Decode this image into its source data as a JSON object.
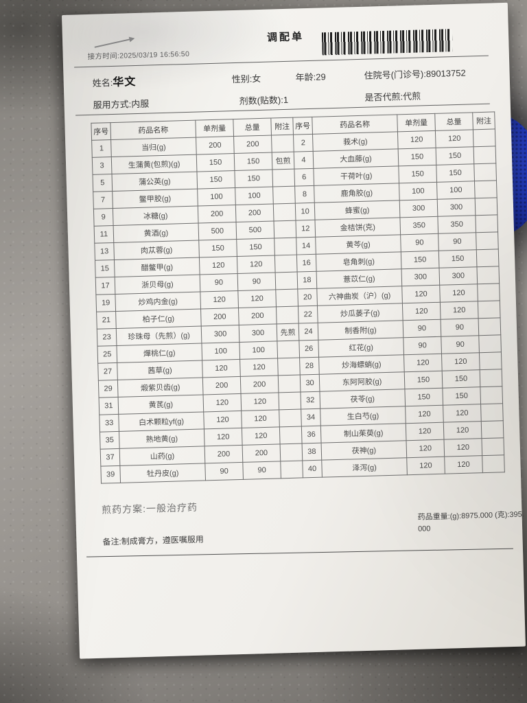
{
  "title": "调配单",
  "print_time": "接方时间:2025/03/19 16:56:50",
  "patient": {
    "name_label": "姓名:",
    "name": "华文",
    "gender": "性别:女",
    "age": "年龄:29",
    "hospital_no": "住院号(门诊号):89013752",
    "usage": "服用方式:内服",
    "dose_count": "剂数(贴数):1",
    "decoct": "是否代煎:代煎"
  },
  "table": {
    "headers": [
      "序号",
      "药品名称",
      "单剂量",
      "总量",
      "附注"
    ],
    "rows": [
      {
        "l": [
          "1",
          "当归(g)",
          "200",
          "200",
          ""
        ],
        "r": [
          "2",
          "莪术(g)",
          "120",
          "120",
          ""
        ]
      },
      {
        "l": [
          "3",
          "生蒲黄(包煎)(g)",
          "150",
          "150",
          "包煎"
        ],
        "r": [
          "4",
          "大血藤(g)",
          "150",
          "150",
          ""
        ]
      },
      {
        "l": [
          "5",
          "蒲公英(g)",
          "150",
          "150",
          ""
        ],
        "r": [
          "6",
          "干荷叶(g)",
          "150",
          "150",
          ""
        ]
      },
      {
        "l": [
          "7",
          "鳖甲胶(g)",
          "100",
          "100",
          ""
        ],
        "r": [
          "8",
          "鹿角胶(g)",
          "100",
          "100",
          ""
        ]
      },
      {
        "l": [
          "9",
          "冰糖(g)",
          "200",
          "200",
          ""
        ],
        "r": [
          "10",
          "蜂蜜(g)",
          "300",
          "300",
          ""
        ]
      },
      {
        "l": [
          "11",
          "黄酒(g)",
          "500",
          "500",
          ""
        ],
        "r": [
          "12",
          "金桔饼(克)",
          "350",
          "350",
          ""
        ]
      },
      {
        "l": [
          "13",
          "肉苁蓉(g)",
          "150",
          "150",
          ""
        ],
        "r": [
          "14",
          "黄芩(g)",
          "90",
          "90",
          ""
        ]
      },
      {
        "l": [
          "15",
          "醋鳖甲(g)",
          "120",
          "120",
          ""
        ],
        "r": [
          "16",
          "皂角刺(g)",
          "150",
          "150",
          ""
        ]
      },
      {
        "l": [
          "17",
          "浙贝母(g)",
          "90",
          "90",
          ""
        ],
        "r": [
          "18",
          "薏苡仁(g)",
          "300",
          "300",
          ""
        ]
      },
      {
        "l": [
          "19",
          "炒鸡内金(g)",
          "120",
          "120",
          ""
        ],
        "r": [
          "20",
          "六神曲炭（沪）(g)",
          "120",
          "120",
          ""
        ]
      },
      {
        "l": [
          "21",
          "柏子仁(g)",
          "200",
          "200",
          ""
        ],
        "r": [
          "22",
          "炒瓜蒌子(g)",
          "120",
          "120",
          ""
        ]
      },
      {
        "l": [
          "23",
          "珍珠母（先煎）(g)",
          "300",
          "300",
          "先煎"
        ],
        "r": [
          "24",
          "制香附(g)",
          "90",
          "90",
          ""
        ]
      },
      {
        "l": [
          "25",
          "燀桃仁(g)",
          "100",
          "100",
          ""
        ],
        "r": [
          "26",
          "红花(g)",
          "90",
          "90",
          ""
        ]
      },
      {
        "l": [
          "27",
          "茜草(g)",
          "120",
          "120",
          ""
        ],
        "r": [
          "28",
          "炒海螵蛸(g)",
          "120",
          "120",
          ""
        ]
      },
      {
        "l": [
          "29",
          "煅紫贝齿(g)",
          "200",
          "200",
          ""
        ],
        "r": [
          "30",
          "东阿阿胶(g)",
          "150",
          "150",
          ""
        ]
      },
      {
        "l": [
          "31",
          "黄芪(g)",
          "120",
          "120",
          ""
        ],
        "r": [
          "32",
          "茯苓(g)",
          "150",
          "150",
          ""
        ]
      },
      {
        "l": [
          "33",
          "白术颗粒yf(g)",
          "120",
          "120",
          ""
        ],
        "r": [
          "34",
          "生白芍(g)",
          "120",
          "120",
          ""
        ]
      },
      {
        "l": [
          "35",
          "熟地黄(g)",
          "120",
          "120",
          ""
        ],
        "r": [
          "36",
          "制山茱萸(g)",
          "120",
          "120",
          ""
        ]
      },
      {
        "l": [
          "37",
          "山药(g)",
          "200",
          "200",
          ""
        ],
        "r": [
          "38",
          "茯神(g)",
          "120",
          "120",
          ""
        ]
      },
      {
        "l": [
          "39",
          "牡丹皮(g)",
          "90",
          "90",
          ""
        ],
        "r": [
          "40",
          "泽泻(g)",
          "120",
          "120",
          ""
        ]
      }
    ]
  },
  "footer": {
    "plan": "煎药方案:一般治疗药",
    "weight": "药品重量:(g):8975.000 (克):395.000",
    "remark": "备注:制成膏方，遵医嘱服用"
  },
  "colors": {
    "paper": "#f2f0ec",
    "metal_counter": "#9d9a95",
    "fabric_blue": "#2743c8",
    "ink": "#3c3c3c"
  }
}
